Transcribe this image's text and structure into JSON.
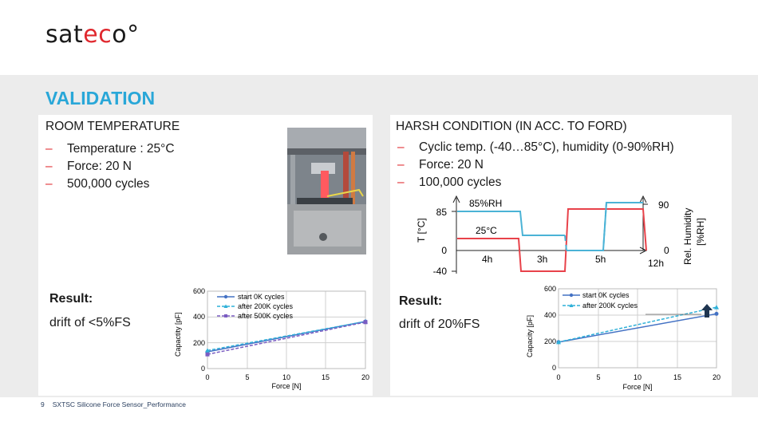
{
  "logo": {
    "prefix": "sat",
    "accent": "ec",
    "suffix": "o°"
  },
  "section_title": "VALIDATION",
  "room": {
    "title": "ROOM TEMPERATURE",
    "bullets": [
      "Temperature : 25°C",
      "Force: 20 N",
      "500,000 cycles"
    ],
    "result_label": "Result:",
    "result_text": "drift of <5%FS"
  },
  "harsh": {
    "title": "HARSH CONDITION (IN ACC. TO FORD)",
    "bullets": [
      "Cyclic temp.  (-40…85°C), humidity (0-90%RH)",
      "Force: 20 N",
      "100,000 cycles"
    ],
    "result_label": "Result:",
    "result_text": "drift of 20%FS"
  },
  "profile": {
    "y_left_label": "T [°C]",
    "y_right_label_1": "Rel. Humidity",
    "y_right_label_2": "[%RH]",
    "left_ticks": [
      "85",
      "0",
      "-40"
    ],
    "right_ticks": [
      "90",
      "0"
    ],
    "time_labels": [
      "4h",
      "3h",
      "5h",
      "12h"
    ],
    "annotations": [
      "85%RH",
      "25°C"
    ]
  },
  "footer": {
    "page": "9",
    "text": "SXTSC Silicone Force Sensor_Performance"
  },
  "colors": {
    "accent_blue": "#29a7d8",
    "accent_red": "#e0282e",
    "series_blue": "#4472c4",
    "series_cyan": "#2fb0d8",
    "series_purple": "#7a5cc2",
    "profile_red": "#e8424a",
    "profile_blue": "#4bb3d6"
  },
  "chart_data": [
    {
      "type": "line",
      "xlabel": "Force [N]",
      "ylabel": "Capactity [pF]",
      "x": [
        0,
        20
      ],
      "xticks": [
        "0",
        "5",
        "10",
        "15",
        "20"
      ],
      "yticks": [
        "0",
        "200",
        "400",
        "600"
      ],
      "xlim": [
        0,
        20
      ],
      "ylim": [
        0,
        600
      ],
      "grid": true,
      "legend": "top-left",
      "series": [
        {
          "name": "start 0K cycles",
          "values": [
            130,
            365
          ]
        },
        {
          "name": "after 200K cycles",
          "values": [
            140,
            365
          ]
        },
        {
          "name": "after 500K cycles",
          "values": [
            110,
            360
          ]
        }
      ]
    },
    {
      "type": "line",
      "xlabel": "Force [N]",
      "ylabel": "Capacity [pF]",
      "x": [
        0,
        20
      ],
      "xticks": [
        "0",
        "5",
        "10",
        "15",
        "20"
      ],
      "yticks": [
        "0",
        "200",
        "400",
        "600"
      ],
      "xlim": [
        0,
        20
      ],
      "ylim": [
        0,
        600
      ],
      "grid": true,
      "legend": "top-left",
      "series": [
        {
          "name": "start 0K cycles",
          "values": [
            195,
            410
          ]
        },
        {
          "name": "after 200K cycles",
          "values": [
            195,
            460
          ]
        }
      ]
    }
  ]
}
